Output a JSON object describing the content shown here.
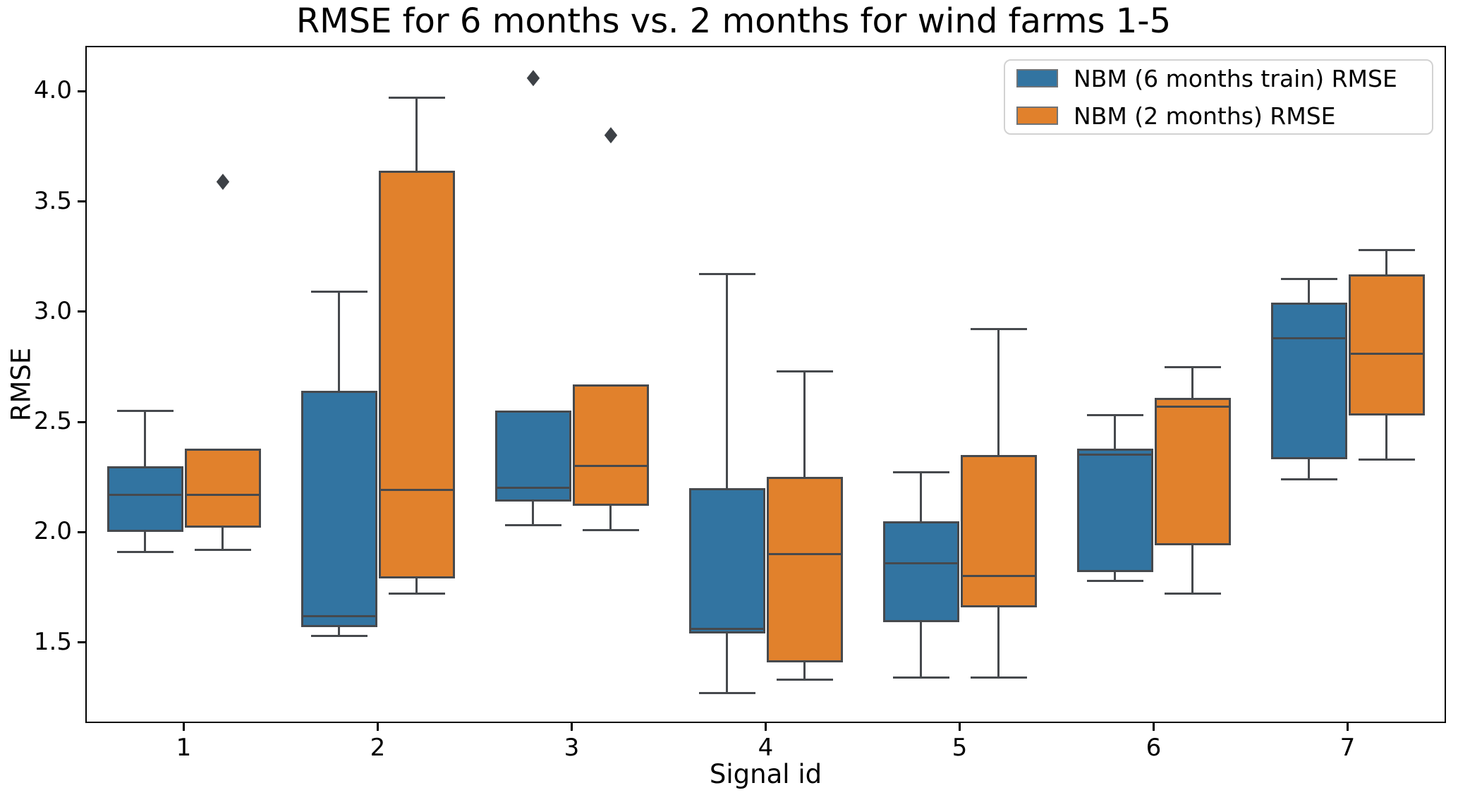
{
  "chart_data": {
    "type": "boxplot",
    "title": "RMSE for 6 months vs. 2 months for wind farms 1-5",
    "xlabel": "Signal id",
    "ylabel": "RMSE",
    "categories": [
      "1",
      "2",
      "3",
      "4",
      "5",
      "6",
      "7"
    ],
    "ylim": [
      1.14,
      4.2
    ],
    "yticks": [
      {
        "label": "1.5",
        "value": 1.5
      },
      {
        "label": "2.0",
        "value": 2.0
      },
      {
        "label": "2.5",
        "value": 2.5
      },
      {
        "label": "3.0",
        "value": 3.0
      },
      {
        "label": "3.5",
        "value": 3.5
      },
      {
        "label": "4.0",
        "value": 4.0
      }
    ],
    "grid": false,
    "legend_position": "upper right",
    "edge_color": "#46494d",
    "outlier_color": "#3d4146",
    "spine_color": "#000000",
    "series": [
      {
        "name": "NBM (6 months train) RMSE",
        "short": "6months",
        "color": "#3274A1",
        "boxes": [
          {
            "whislo": 1.91,
            "q1": 2.0,
            "med": 2.17,
            "q3": 2.3,
            "whishi": 2.55,
            "outliers": []
          },
          {
            "whislo": 1.53,
            "q1": 1.57,
            "med": 1.62,
            "q3": 2.64,
            "whishi": 3.09,
            "outliers": []
          },
          {
            "whislo": 2.03,
            "q1": 2.14,
            "med": 2.2,
            "q3": 2.55,
            "whishi": 2.55,
            "outliers": [
              4.06
            ]
          },
          {
            "whislo": 1.27,
            "q1": 1.54,
            "med": 1.56,
            "q3": 2.2,
            "whishi": 3.17,
            "outliers": []
          },
          {
            "whislo": 1.34,
            "q1": 1.59,
            "med": 1.86,
            "q3": 2.05,
            "whishi": 2.27,
            "outliers": []
          },
          {
            "whislo": 1.78,
            "q1": 1.82,
            "med": 2.35,
            "q3": 2.38,
            "whishi": 2.53,
            "outliers": []
          },
          {
            "whislo": 2.24,
            "q1": 2.33,
            "med": 2.88,
            "q3": 3.04,
            "whishi": 3.15,
            "outliers": []
          }
        ]
      },
      {
        "name": "NBM (2 months) RMSE",
        "short": "2months",
        "color": "#E1812C",
        "boxes": [
          {
            "whislo": 1.92,
            "q1": 2.02,
            "med": 2.17,
            "q3": 2.38,
            "whishi": 2.38,
            "outliers": [
              3.59
            ]
          },
          {
            "whislo": 1.72,
            "q1": 1.79,
            "med": 2.19,
            "q3": 3.64,
            "whishi": 3.97,
            "outliers": []
          },
          {
            "whislo": 2.01,
            "q1": 2.12,
            "med": 2.3,
            "q3": 2.67,
            "whishi": 2.67,
            "outliers": [
              3.8
            ]
          },
          {
            "whislo": 1.33,
            "q1": 1.41,
            "med": 1.9,
            "q3": 2.25,
            "whishi": 2.73,
            "outliers": []
          },
          {
            "whislo": 1.34,
            "q1": 1.66,
            "med": 1.8,
            "q3": 2.35,
            "whishi": 2.92,
            "outliers": []
          },
          {
            "whislo": 1.72,
            "q1": 1.94,
            "med": 2.57,
            "q3": 2.61,
            "whishi": 2.75,
            "outliers": []
          },
          {
            "whislo": 2.33,
            "q1": 2.53,
            "med": 2.81,
            "q3": 3.17,
            "whishi": 3.28,
            "outliers": []
          }
        ]
      }
    ]
  }
}
